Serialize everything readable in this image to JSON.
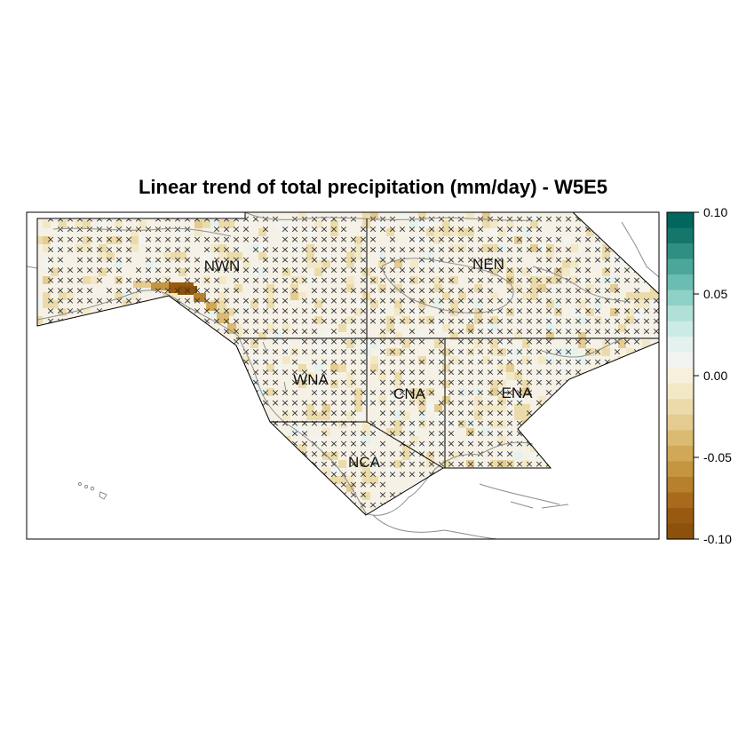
{
  "title": "Linear trend of total precipitation (mm/day) - W5E5",
  "regions": [
    {
      "code": "NWN"
    },
    {
      "code": "NEN"
    },
    {
      "code": "WNA"
    },
    {
      "code": "CNA"
    },
    {
      "code": "ENA"
    },
    {
      "code": "NCA"
    }
  ],
  "colorbar": {
    "range": [
      -0.1,
      0.1
    ],
    "tick_labels": [
      "0.10",
      "0.05",
      "0.00",
      "-0.05",
      "-0.10"
    ],
    "colors": [
      "#8c510a",
      "#985a10",
      "#a86b1c",
      "#b7802c",
      "#c5953f",
      "#d1a857",
      "#dbba72",
      "#e4cb8f",
      "#ecdbaa",
      "#f3e8c6",
      "#f6f0dd",
      "#f2f4f1",
      "#e4f2ef",
      "#cdebe5",
      "#b0e0d8",
      "#8fd1c6",
      "#6cbdb1",
      "#4ca79a",
      "#2f8f83",
      "#15766a",
      "#01665e"
    ]
  },
  "stipple_marker": "×",
  "colors": {
    "frame": "#000000",
    "coast": "#8c8c8c",
    "land_base": "#f5f1e6"
  }
}
